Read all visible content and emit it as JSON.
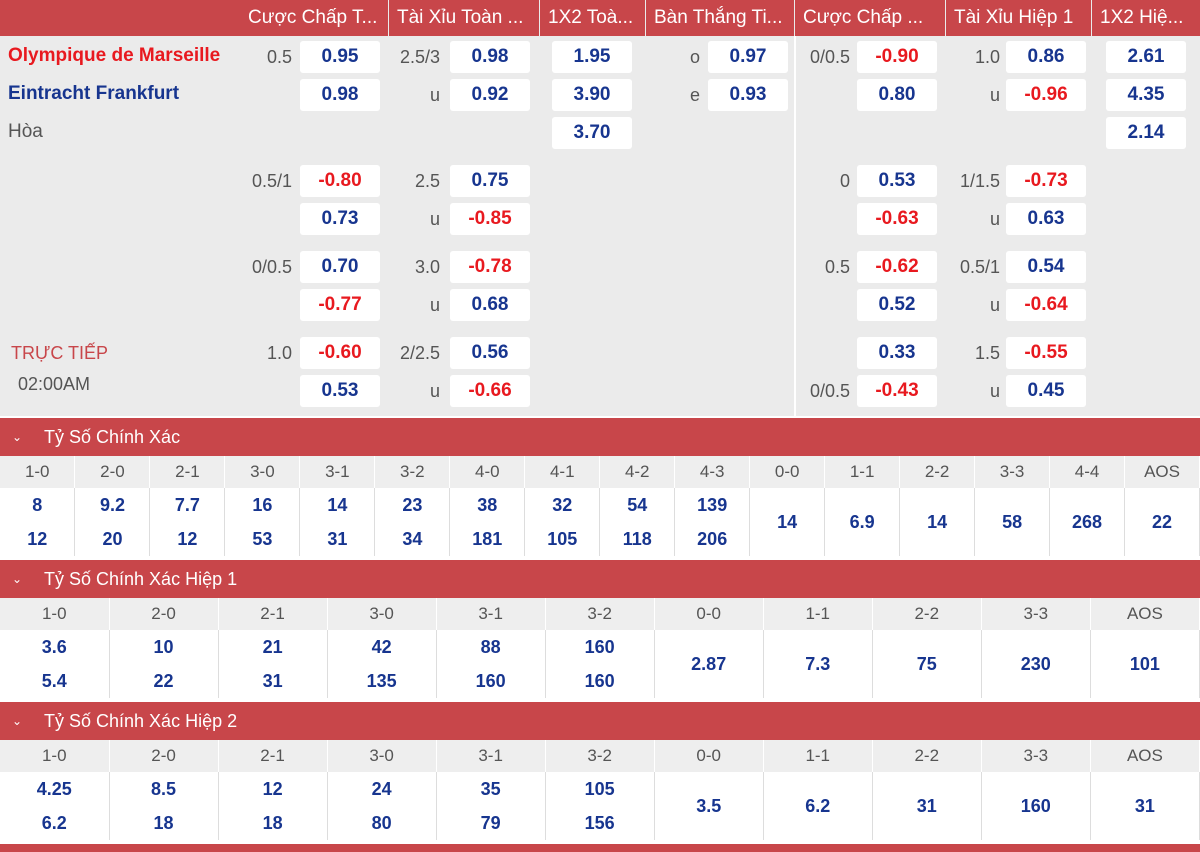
{
  "headers": [
    "Cược Chấp T...",
    "Tài Xỉu Toàn ...",
    "1X2 Toà...",
    "Bàn Thắng Ti...",
    "Cược Chấp ...",
    "Tài Xỉu Hiệp 1",
    "1X2 Hiệ..."
  ],
  "teams": {
    "home": "Olympique de Marseille",
    "away": "Eintracht Frankfurt",
    "draw": "Hòa"
  },
  "status": {
    "live": "TRỰC TIẾP",
    "time": "02:00AM"
  },
  "main_odds": {
    "hc_line": "0.5",
    "hc_home": "0.95",
    "hc_away": "0.98",
    "ou_line": "2.5/3",
    "ou_over": "0.98",
    "ou_u": "u",
    "ou_under": "0.92",
    "x12_home": "1.95",
    "x12_away": "3.90",
    "x12_draw": "3.70",
    "oe_o": "o",
    "oe_o_val": "0.97",
    "oe_e": "e",
    "oe_e_val": "0.93",
    "h1hc_line": "0/0.5",
    "h1hc_home": "-0.90",
    "h1hc_away": "0.80",
    "h1ou_line": "1.0",
    "h1ou_over": "0.86",
    "h1ou_u": "u",
    "h1ou_under": "-0.96",
    "h1x12_home": "2.61",
    "h1x12_away": "4.35",
    "h1x12_draw": "2.14"
  },
  "alt_rows": [
    {
      "hc_line": "0.5/1",
      "hc_home": "-0.80",
      "hc_away": "0.73",
      "ou_line": "2.5",
      "ou_over": "0.75",
      "ou_u": "u",
      "ou_under": "-0.85",
      "h1hc_line": "0",
      "h1hc_home": "0.53",
      "h1hc_away": "-0.63",
      "h1ou_line": "1/1.5",
      "h1ou_over": "-0.73",
      "h1ou_u": "u",
      "h1ou_under": "0.63"
    },
    {
      "hc_line": "0/0.5",
      "hc_home": "0.70",
      "hc_away": "-0.77",
      "ou_line": "3.0",
      "ou_over": "-0.78",
      "ou_u": "u",
      "ou_under": "0.68",
      "h1hc_line": "0.5",
      "h1hc_home": "-0.62",
      "h1hc_away": "0.52",
      "h1ou_line": "0.5/1",
      "h1ou_over": "0.54",
      "h1ou_u": "u",
      "h1ou_under": "-0.64"
    },
    {
      "hc_line": "1.0",
      "hc_home": "-0.60",
      "hc_away": "0.53",
      "ou_line": "2/2.5",
      "ou_over": "0.56",
      "ou_u": "u",
      "ou_under": "-0.66",
      "h1hc_line": "0/0.5",
      "h1hc_home": "0.33",
      "h1hc_away": "-0.43",
      "h1ou_line": "1.5",
      "h1ou_over": "-0.55",
      "h1ou_u": "u",
      "h1ou_under": "0.45"
    }
  ],
  "sections": [
    {
      "title": "Tỷ Số Chính Xác",
      "arrow": "⌄",
      "columns": [
        "1-0",
        "2-0",
        "2-1",
        "3-0",
        "3-1",
        "3-2",
        "4-0",
        "4-1",
        "4-2",
        "4-3",
        "0-0",
        "1-1",
        "2-2",
        "3-3",
        "4-4",
        "AOS"
      ],
      "row1": [
        "8",
        "9.2",
        "7.7",
        "16",
        "14",
        "23",
        "38",
        "32",
        "54",
        "139"
      ],
      "row2": [
        "12",
        "20",
        "12",
        "53",
        "31",
        "34",
        "181",
        "105",
        "118",
        "206"
      ],
      "draws": [
        "14",
        "6.9",
        "14",
        "58",
        "268",
        "22"
      ]
    },
    {
      "title": "Tỷ Số Chính Xác Hiệp 1",
      "arrow": "⌄",
      "columns": [
        "1-0",
        "2-0",
        "2-1",
        "3-0",
        "3-1",
        "3-2",
        "0-0",
        "1-1",
        "2-2",
        "3-3",
        "AOS"
      ],
      "row1": [
        "3.6",
        "10",
        "21",
        "42",
        "88",
        "160"
      ],
      "row2": [
        "5.4",
        "22",
        "31",
        "135",
        "160",
        "160"
      ],
      "draws": [
        "2.87",
        "7.3",
        "75",
        "230",
        "101"
      ]
    },
    {
      "title": "Tỷ Số Chính Xác Hiệp 2",
      "arrow": "⌄",
      "columns": [
        "1-0",
        "2-0",
        "2-1",
        "3-0",
        "3-1",
        "3-2",
        "0-0",
        "1-1",
        "2-2",
        "3-3",
        "AOS"
      ],
      "row1": [
        "4.25",
        "8.5",
        "12",
        "24",
        "35",
        "105"
      ],
      "row2": [
        "6.2",
        "18",
        "18",
        "80",
        "79",
        "156"
      ],
      "draws": [
        "3.5",
        "6.2",
        "31",
        "160",
        "31"
      ]
    }
  ]
}
